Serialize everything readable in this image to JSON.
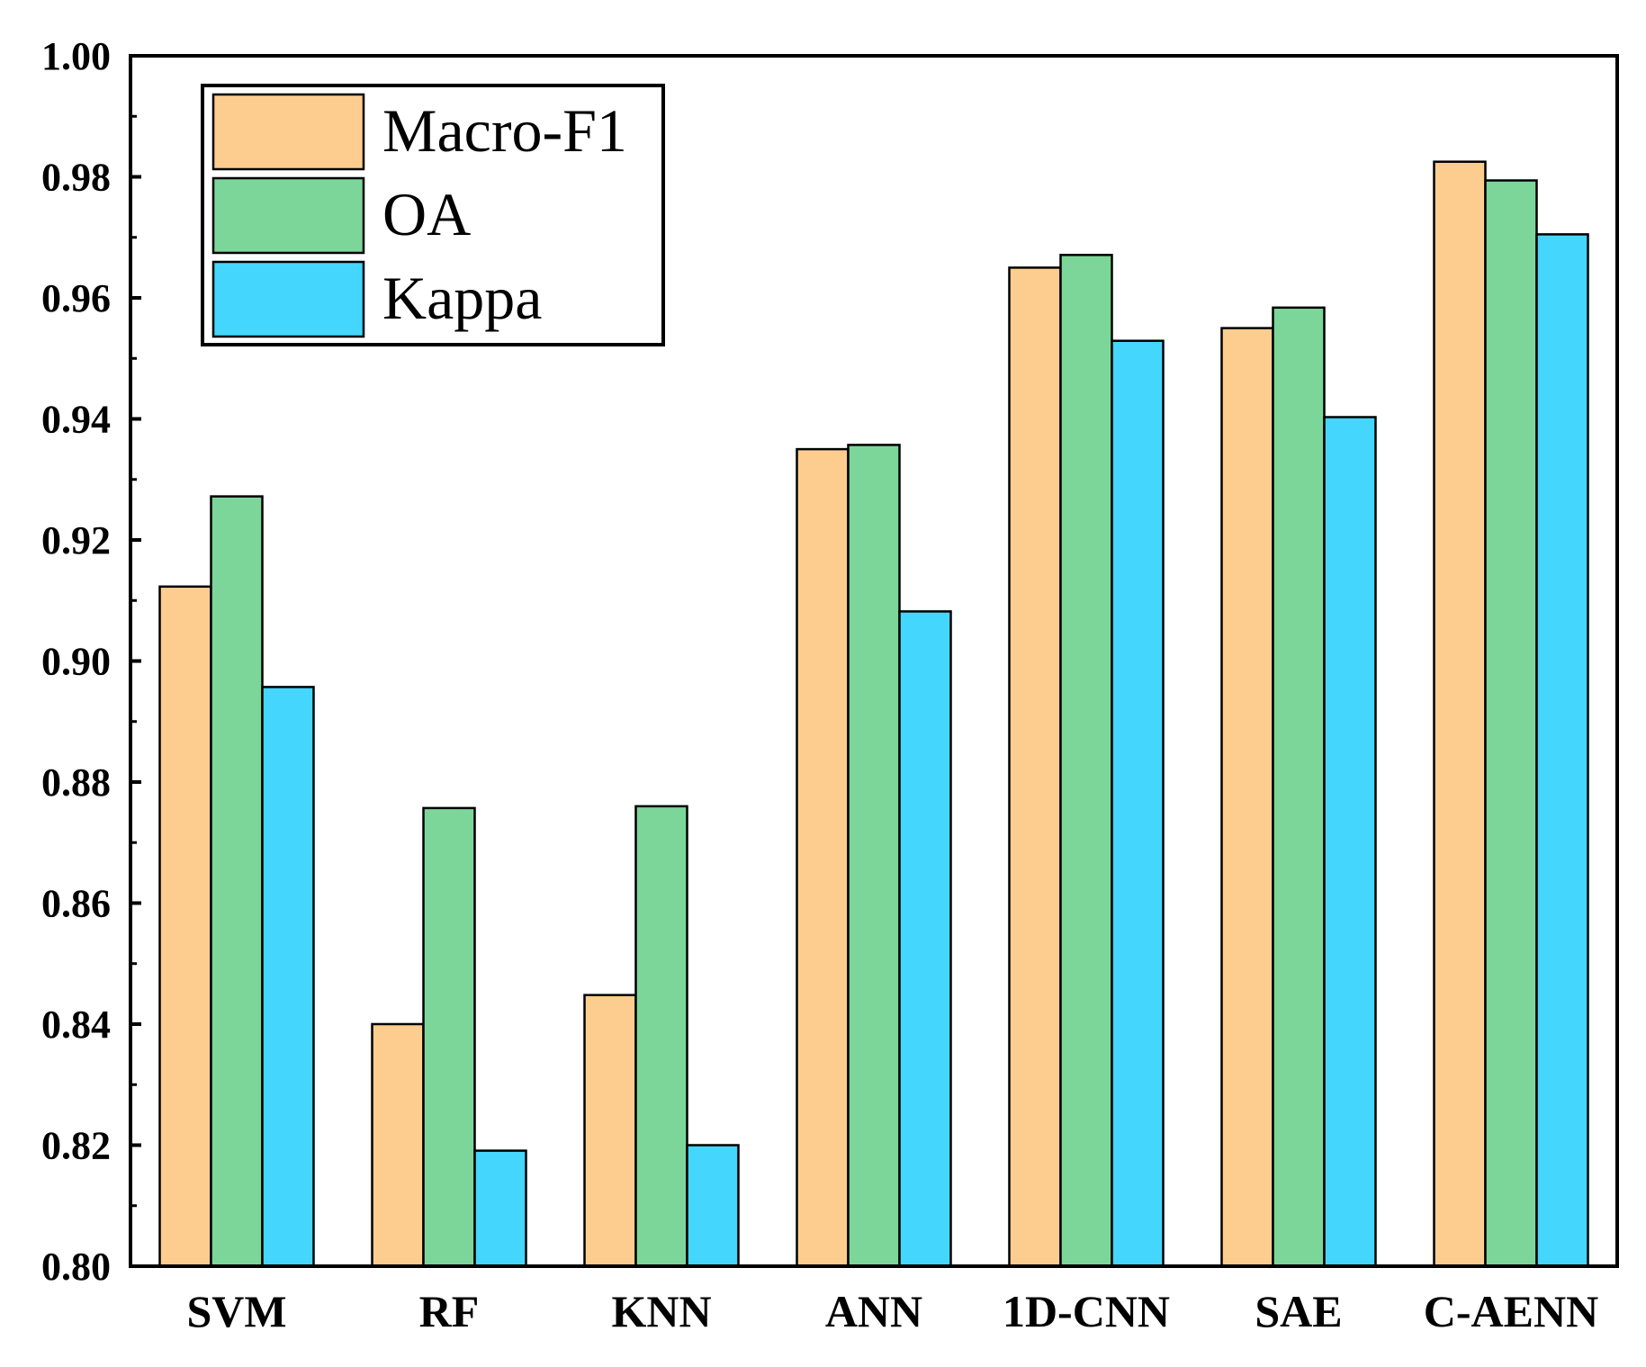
{
  "chart_data": {
    "type": "bar",
    "title": "",
    "xlabel": "",
    "ylabel": "",
    "ylim": [
      0.8,
      1.0
    ],
    "yticks": [
      "0.80",
      "0.82",
      "0.84",
      "0.86",
      "0.88",
      "0.90",
      "0.92",
      "0.94",
      "0.96",
      "0.98",
      "1.00"
    ],
    "categories": [
      "SVM",
      "RF",
      "KNN",
      "ANN",
      "1D-CNN",
      "SAE",
      "C-AENN"
    ],
    "series": [
      {
        "name": "Macro-F1",
        "color": "#FDCD8F",
        "values": [
          0.9123,
          0.84,
          0.8448,
          0.935,
          0.965,
          0.955,
          0.9825
        ]
      },
      {
        "name": "OA",
        "color": "#7DD699",
        "values": [
          0.9272,
          0.8757,
          0.876,
          0.9357,
          0.9671,
          0.9584,
          0.9794
        ]
      },
      {
        "name": "Kappa",
        "color": "#44D6FC",
        "values": [
          0.8957,
          0.8191,
          0.82,
          0.9082,
          0.9529,
          0.9403,
          0.9705
        ]
      }
    ],
    "legend_position": "top-left",
    "grid": false
  }
}
